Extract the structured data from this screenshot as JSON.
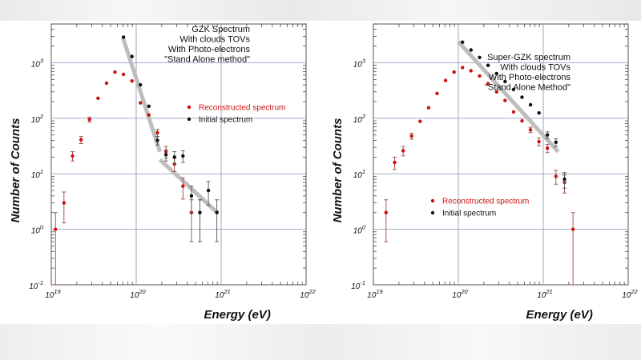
{
  "colors": {
    "reconstructed": "#cc1111",
    "initial": "#111111",
    "fit": "#bdbdbd",
    "grid": "#8a8fb8",
    "frame": "#555555"
  },
  "chart_data": [
    {
      "type": "scatter",
      "ylabel": "Number of Counts",
      "xlabel": "Energy (eV)",
      "xlim": [
        1e+19,
        1e+22
      ],
      "ylim": [
        0.1,
        5000
      ],
      "x_ticks": [
        {
          "base": "10",
          "exp": "19",
          "value": 1e+19
        },
        {
          "base": "10",
          "exp": "20",
          "value": 1e+20
        },
        {
          "base": "10",
          "exp": "21",
          "value": 1e+21
        },
        {
          "base": "10",
          "exp": "22",
          "value": 1e+22
        }
      ],
      "y_ticks": [
        {
          "base": "10",
          "exp": "-1",
          "value": 0.1
        },
        {
          "base": "10",
          "exp": "0",
          "value": 1
        },
        {
          "base": "10",
          "exp": "1",
          "value": 10
        },
        {
          "base": "10",
          "exp": "2",
          "value": 100
        },
        {
          "base": "10",
          "exp": "3",
          "value": 1000
        }
      ],
      "annotation": [
        "GZK Spectrum",
        "With clouds TOVs",
        "With Photo-electrons",
        "\"Stand Alone method\""
      ],
      "legend": {
        "reconstructed": "Reconstructed spectrum",
        "initial": "Initial spectrum"
      },
      "series": [
        {
          "name": "Reconstructed spectrum",
          "color": "red",
          "points": [
            {
              "x": 1.12e+19,
              "y": 1.0,
              "lo": 0.1,
              "hi": 2.0
            },
            {
              "x": 1.41e+19,
              "y": 3.0,
              "lo": 1.3,
              "hi": 4.7
            },
            {
              "x": 1.78e+19,
              "y": 21,
              "lo": 17,
              "hi": 25
            },
            {
              "x": 2.24e+19,
              "y": 41,
              "lo": 35,
              "hi": 47
            },
            {
              "x": 2.82e+19,
              "y": 95,
              "lo": 85,
              "hi": 105
            },
            {
              "x": 3.55e+19,
              "y": 230
            },
            {
              "x": 4.47e+19,
              "y": 430
            },
            {
              "x": 5.62e+19,
              "y": 680
            },
            {
              "x": 7.08e+19,
              "y": 620
            },
            {
              "x": 8.91e+19,
              "y": 470
            },
            {
              "x": 1.12e+20,
              "y": 190
            },
            {
              "x": 1.41e+20,
              "y": 115
            },
            {
              "x": 1.78e+20,
              "y": 55,
              "lo": 47,
              "hi": 63
            },
            {
              "x": 2.24e+20,
              "y": 25,
              "lo": 19,
              "hi": 31
            },
            {
              "x": 2.82e+20,
              "y": 15,
              "lo": 11,
              "hi": 19
            },
            {
              "x": 3.55e+20,
              "y": 6.0,
              "lo": 3.5,
              "hi": 8.5
            },
            {
              "x": 4.47e+20,
              "y": 2.0,
              "lo": 0.6,
              "hi": 3.4
            },
            {
              "x": 5.62e+20,
              "y": 2.0,
              "lo": 0.6,
              "hi": 3.4
            }
          ]
        },
        {
          "name": "Initial spectrum",
          "color": "black",
          "points": [
            {
              "x": 7.08e+19,
              "y": 2900
            },
            {
              "x": 8.91e+19,
              "y": 1300
            },
            {
              "x": 1.12e+20,
              "y": 400
            },
            {
              "x": 1.41e+20,
              "y": 165
            },
            {
              "x": 1.78e+20,
              "y": 40,
              "lo": 33,
              "hi": 47
            },
            {
              "x": 2.24e+20,
              "y": 22,
              "lo": 17,
              "hi": 27
            },
            {
              "x": 2.82e+20,
              "y": 20,
              "lo": 15,
              "hi": 25
            },
            {
              "x": 3.55e+20,
              "y": 21,
              "lo": 16,
              "hi": 26
            },
            {
              "x": 4.47e+20,
              "y": 4.0,
              "lo": 2.0,
              "hi": 6.0
            },
            {
              "x": 5.62e+20,
              "y": 2.0,
              "lo": 0.6,
              "hi": 3.4
            },
            {
              "x": 7.08e+20,
              "y": 5.0,
              "lo": 2.7,
              "hi": 7.3
            },
            {
              "x": 8.91e+20,
              "y": 2.0,
              "lo": 0.6,
              "hi": 3.4
            }
          ]
        }
      ],
      "fit_lines": [
        [
          {
            "x": 7e+19,
            "y": 2800
          },
          {
            "x": 1.9e+20,
            "y": 25
          }
        ],
        [
          {
            "x": 1.9e+20,
            "y": 18
          },
          {
            "x": 9e+20,
            "y": 2.0
          }
        ]
      ]
    },
    {
      "type": "scatter",
      "ylabel": "Number of Counts",
      "xlabel": "Energy (eV)",
      "xlim": [
        1e+19,
        1e+22
      ],
      "ylim": [
        0.1,
        5000
      ],
      "x_ticks": [
        {
          "base": "10",
          "exp": "19",
          "value": 1e+19
        },
        {
          "base": "10",
          "exp": "20",
          "value": 1e+20
        },
        {
          "base": "10",
          "exp": "21",
          "value": 1e+21
        },
        {
          "base": "10",
          "exp": "22",
          "value": 1e+22
        }
      ],
      "y_ticks": [
        {
          "base": "10",
          "exp": "-1",
          "value": 0.1
        },
        {
          "base": "10",
          "exp": "0",
          "value": 1
        },
        {
          "base": "10",
          "exp": "1",
          "value": 10
        },
        {
          "base": "10",
          "exp": "2",
          "value": 100
        },
        {
          "base": "10",
          "exp": "3",
          "value": 1000
        }
      ],
      "annotation": [
        "Super-GZK spectrum",
        "With clouds TOVs",
        "With Photo-electrons",
        "\"Stand Alone Method\""
      ],
      "legend": {
        "reconstructed": "Reconstructed spectrum",
        "initial": "Initial spectrum"
      },
      "series": [
        {
          "name": "Reconstructed spectrum",
          "color": "red",
          "points": [
            {
              "x": 1.41e+19,
              "y": 2.0,
              "lo": 0.6,
              "hi": 3.4
            },
            {
              "x": 1.78e+19,
              "y": 16,
              "lo": 12,
              "hi": 20
            },
            {
              "x": 2.24e+19,
              "y": 26,
              "lo": 21,
              "hi": 31
            },
            {
              "x": 2.82e+19,
              "y": 48,
              "lo": 42,
              "hi": 54
            },
            {
              "x": 3.55e+19,
              "y": 88
            },
            {
              "x": 4.47e+19,
              "y": 155
            },
            {
              "x": 5.62e+19,
              "y": 280
            },
            {
              "x": 7.08e+19,
              "y": 480
            },
            {
              "x": 8.91e+19,
              "y": 680
            },
            {
              "x": 1.12e+20,
              "y": 820
            },
            {
              "x": 1.41e+20,
              "y": 720
            },
            {
              "x": 1.78e+20,
              "y": 580
            },
            {
              "x": 2.24e+20,
              "y": 420
            },
            {
              "x": 2.82e+20,
              "y": 300
            },
            {
              "x": 3.55e+20,
              "y": 210
            },
            {
              "x": 4.47e+20,
              "y": 130
            },
            {
              "x": 5.62e+20,
              "y": 90
            },
            {
              "x": 7.08e+20,
              "y": 62,
              "lo": 55,
              "hi": 69
            },
            {
              "x": 8.91e+20,
              "y": 38,
              "lo": 32,
              "hi": 44
            },
            {
              "x": 1.12e+21,
              "y": 29,
              "lo": 24,
              "hi": 34
            },
            {
              "x": 1.41e+21,
              "y": 9.0,
              "lo": 6.5,
              "hi": 11.5
            },
            {
              "x": 1.78e+21,
              "y": 7.0,
              "lo": 4.5,
              "hi": 9.5
            },
            {
              "x": 2.24e+21,
              "y": 1.0,
              "lo": 0.1,
              "hi": 2.0
            }
          ]
        },
        {
          "name": "Initial spectrum",
          "color": "black",
          "points": [
            {
              "x": 1.12e+20,
              "y": 2350
            },
            {
              "x": 1.41e+20,
              "y": 1700
            },
            {
              "x": 1.78e+20,
              "y": 1250
            },
            {
              "x": 2.24e+20,
              "y": 900
            },
            {
              "x": 2.82e+20,
              "y": 640
            },
            {
              "x": 3.55e+20,
              "y": 460
            },
            {
              "x": 4.47e+20,
              "y": 330
            },
            {
              "x": 5.62e+20,
              "y": 240
            },
            {
              "x": 7.08e+20,
              "y": 175
            },
            {
              "x": 8.91e+20,
              "y": 125
            },
            {
              "x": 1.12e+21,
              "y": 50,
              "lo": 43,
              "hi": 57
            },
            {
              "x": 1.41e+21,
              "y": 37,
              "lo": 31,
              "hi": 43
            },
            {
              "x": 1.78e+21,
              "y": 8.0,
              "lo": 5.5,
              "hi": 10.5
            }
          ]
        }
      ],
      "fit_lines": [
        [
          {
            "x": 1e+20,
            "y": 2400
          },
          {
            "x": 1.5e+21,
            "y": 25
          }
        ]
      ]
    }
  ]
}
